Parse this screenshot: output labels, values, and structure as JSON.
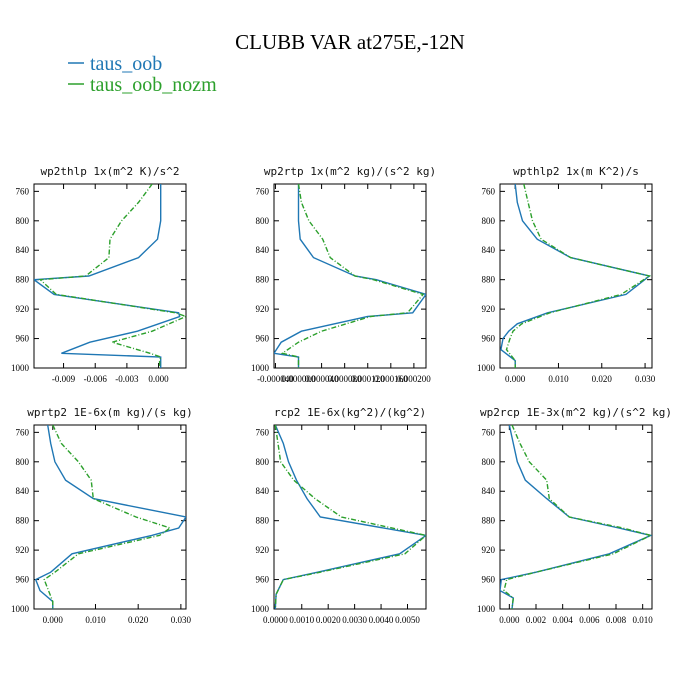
{
  "title": "CLUBB VAR at275E,-12N",
  "legend": [
    {
      "name": "taus_oob",
      "color": "#1f77b4"
    },
    {
      "name": "taus_oob_nozm",
      "color": "#2ca02c"
    }
  ],
  "chart_data": [
    {
      "type": "line",
      "title": "wp2thlp  1x(m^2 K)/s^2",
      "xlim": [
        -0.0118,
        0.0026
      ],
      "ylim": [
        1000,
        750
      ],
      "xticks": [
        -0.009,
        -0.006,
        -0.003,
        0.0
      ],
      "xtick_labels": [
        "-0.009",
        "-0.006",
        "-0.003",
        "0.000"
      ],
      "yticks": [
        760,
        800,
        840,
        880,
        920,
        960,
        1000
      ],
      "y": [
        750,
        775,
        800,
        825,
        850,
        875,
        880,
        900,
        925,
        930,
        950,
        965,
        980,
        985,
        990,
        1000
      ],
      "series": [
        {
          "name": "taus_oob",
          "values": [
            0.0002,
            0.0002,
            0.0002,
            -0.0001,
            -0.0019,
            -0.0066,
            -0.0118,
            -0.0099,
            0.0019,
            0.002,
            -0.002,
            -0.0065,
            -0.0092,
            0.0002,
            0.0002,
            0.0002
          ]
        },
        {
          "name": "taus_oob_nozm",
          "values": [
            -0.0006,
            -0.0019,
            -0.0035,
            -0.0046,
            -0.0047,
            -0.0069,
            -0.0112,
            -0.0097,
            0.0016,
            0.0026,
            -0.0006,
            -0.0044,
            -0.0008,
            0.0002,
            0.0001,
            0.0001
          ]
        }
      ]
    },
    {
      "type": "line",
      "title": "wp2rtp  1x(m^2 kg)/(s^2 kg)",
      "xlim": [
        -4.25e-05,
        0.000221
      ],
      "ylim": [
        1000,
        750
      ],
      "xticks": [
        -4e-05,
        0.0,
        4e-05,
        8e-05,
        0.00012,
        0.00016,
        0.0002
      ],
      "xtick_labels": [
        "-0.000040",
        "0.000000",
        "0.000040",
        "0.000080",
        "0.000120",
        "0.000160",
        "0.000200"
      ],
      "yticks": [
        760,
        800,
        840,
        880,
        920,
        960,
        1000
      ],
      "y": [
        750,
        775,
        800,
        825,
        850,
        875,
        880,
        900,
        925,
        930,
        950,
        965,
        980,
        985,
        990,
        1000
      ],
      "series": [
        {
          "name": "taus_oob",
          "values": [
            0.0,
            0.0,
            0.0,
            3e-06,
            2.6e-05,
            9.8e-05,
            0.000135,
            0.000221,
            0.000198,
            0.00012,
            5e-06,
            -3e-05,
            -4.25e-05,
            0.0,
            0.0,
            0.0
          ]
        },
        {
          "name": "taus_oob_nozm",
          "values": [
            0.0,
            5e-06,
            1.8e-05,
            4.2e-05,
            5.5e-05,
            9.8e-05,
            0.00013,
            0.000216,
            0.000189,
            0.000125,
            4e-05,
            0.0,
            -2.8e-05,
            0.0,
            0.0,
            0.0
          ]
        }
      ]
    },
    {
      "type": "line",
      "title": "wpthlp2  1x(m K^2)/s",
      "xlim": [
        -0.0035,
        0.0316
      ],
      "ylim": [
        1000,
        750
      ],
      "xticks": [
        0.0,
        0.01,
        0.02,
        0.03
      ],
      "xtick_labels": [
        "0.000",
        "0.010",
        "0.020",
        "0.030"
      ],
      "yticks": [
        760,
        800,
        840,
        880,
        920,
        960,
        1000
      ],
      "y": [
        750,
        775,
        800,
        825,
        850,
        875,
        900,
        925,
        940,
        950,
        960,
        975,
        990,
        1000
      ],
      "series": [
        {
          "name": "taus_oob",
          "values": [
            0.0,
            0.0005,
            0.0017,
            0.0051,
            0.0128,
            0.031,
            0.0256,
            0.0075,
            0.0005,
            -0.0015,
            -0.0028,
            -0.0033,
            0.0,
            0.0
          ]
        },
        {
          "name": "taus_oob_nozm",
          "values": [
            0.002,
            0.003,
            0.004,
            0.006,
            0.0128,
            0.031,
            0.0245,
            0.008,
            0.0015,
            -0.0005,
            -0.0012,
            -0.002,
            0.0,
            0.0
          ]
        }
      ]
    },
    {
      "type": "line",
      "title": "wprtp2  1E-6x(m kg)/(s kg)",
      "xlim": [
        -0.0044,
        0.0312
      ],
      "ylim": [
        1000,
        750
      ],
      "xticks": [
        0.0,
        0.01,
        0.02,
        0.03
      ],
      "xtick_labels": [
        "0.000",
        "0.010",
        "0.020",
        "0.030"
      ],
      "yticks": [
        760,
        800,
        840,
        880,
        920,
        960,
        1000
      ],
      "y": [
        750,
        775,
        800,
        825,
        850,
        875,
        890,
        900,
        925,
        950,
        960,
        975,
        990,
        1000
      ],
      "series": [
        {
          "name": "taus_oob",
          "values": [
            -0.0012,
            -0.0005,
            0.0005,
            0.003,
            0.0095,
            0.0312,
            0.0295,
            0.0232,
            0.0045,
            -0.0005,
            -0.004,
            -0.003,
            0.0,
            0.0
          ]
        },
        {
          "name": "taus_oob_nozm",
          "values": [
            0.0,
            0.002,
            0.006,
            0.009,
            0.0095,
            0.0195,
            0.0275,
            0.025,
            0.006,
            0.0005,
            -0.002,
            -0.001,
            0.0,
            0.0
          ]
        }
      ]
    },
    {
      "type": "line",
      "title": "rcp2  1E-6x(kg^2)/(kg^2)",
      "xlim": [
        -5e-05,
        0.0057
      ],
      "ylim": [
        1000,
        750
      ],
      "xticks": [
        0.0,
        0.001,
        0.002,
        0.003,
        0.004,
        0.005
      ],
      "xtick_labels": [
        "0.0000",
        "0.0010",
        "0.0020",
        "0.0030",
        "0.0040",
        "0.0050"
      ],
      "yticks": [
        760,
        800,
        840,
        880,
        920,
        960,
        1000
      ],
      "y": [
        750,
        775,
        800,
        825,
        850,
        875,
        900,
        925,
        950,
        960,
        980,
        1000
      ],
      "series": [
        {
          "name": "taus_oob",
          "values": [
            0.0,
            0.0003,
            0.0005,
            0.0008,
            0.0012,
            0.0017,
            0.0057,
            0.0047,
            0.0016,
            0.0003,
            3e-05,
            0.0
          ]
        },
        {
          "name": "taus_oob_nozm",
          "values": [
            0.0,
            0.0001,
            0.0002,
            0.0007,
            0.0015,
            0.0025,
            0.0057,
            0.0049,
            0.0017,
            0.0003,
            3e-05,
            0.0
          ]
        }
      ]
    },
    {
      "type": "line",
      "title": "wp2rcp  1E-3x(m^2 kg)/(s^2 kg)",
      "xlim": [
        -0.0007,
        0.0107
      ],
      "ylim": [
        1000,
        750
      ],
      "xticks": [
        0.0,
        0.002,
        0.004,
        0.006,
        0.008,
        0.01
      ],
      "xtick_labels": [
        "0.000",
        "0.002",
        "0.004",
        "0.006",
        "0.008",
        "0.010"
      ],
      "yticks": [
        760,
        800,
        840,
        880,
        920,
        960,
        1000
      ],
      "y": [
        750,
        775,
        800,
        825,
        850,
        875,
        890,
        900,
        925,
        950,
        960,
        975,
        985,
        1000
      ],
      "series": [
        {
          "name": "taus_oob",
          "values": [
            0.0,
            0.0003,
            0.0006,
            0.0012,
            0.0028,
            0.0045,
            0.0082,
            0.0106,
            0.0075,
            0.002,
            -0.0006,
            -0.0007,
            0.0003,
            0.0002
          ]
        },
        {
          "name": "taus_oob_nozm",
          "values": [
            0.0002,
            0.0008,
            0.0015,
            0.0028,
            0.003,
            0.0045,
            0.0085,
            0.0106,
            0.0078,
            0.002,
            -0.0002,
            -0.0004,
            0.0003,
            0.0002
          ]
        }
      ]
    }
  ]
}
